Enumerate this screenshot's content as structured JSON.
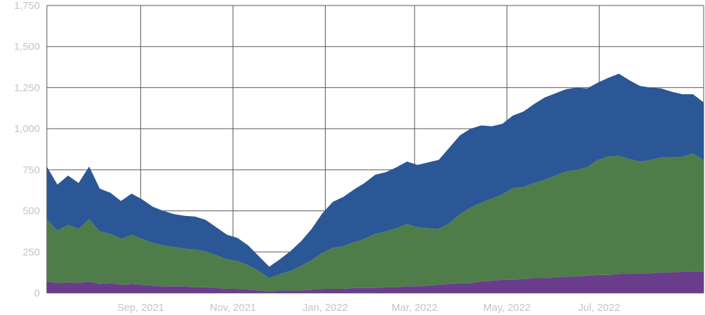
{
  "chart_data": {
    "type": "area",
    "stacked": true,
    "grid": true,
    "legend": "none",
    "ylim": [
      0,
      1750
    ],
    "yticks": [
      0,
      250,
      500,
      750,
      1000,
      1250,
      1500,
      1750
    ],
    "ytick_labels": [
      "0",
      "250",
      "500",
      "750",
      "1,000",
      "1,250",
      "1,500",
      "1,750"
    ],
    "x_range": [
      "2021-07-01",
      "2022-09-08"
    ],
    "xticks": [
      "2021-09-01",
      "2021-11-01",
      "2022-01-01",
      "2022-03-01",
      "2022-05-01",
      "2022-07-01"
    ],
    "xtick_labels": [
      "Sep, 2021",
      "Nov, 2021",
      "Jan, 2022",
      "Mar, 2022",
      "May, 2022",
      "Jul, 2022"
    ],
    "x_interval": "weekly",
    "x": [
      "2021-07-01",
      "2021-07-08",
      "2021-07-15",
      "2021-07-22",
      "2021-07-29",
      "2021-08-05",
      "2021-08-12",
      "2021-08-19",
      "2021-08-26",
      "2021-09-02",
      "2021-09-09",
      "2021-09-16",
      "2021-09-23",
      "2021-09-30",
      "2021-10-07",
      "2021-10-14",
      "2021-10-21",
      "2021-10-28",
      "2021-11-04",
      "2021-11-11",
      "2021-11-18",
      "2021-11-25",
      "2021-12-02",
      "2021-12-09",
      "2021-12-16",
      "2021-12-23",
      "2021-12-30",
      "2022-01-06",
      "2022-01-13",
      "2022-01-20",
      "2022-01-27",
      "2022-02-03",
      "2022-02-10",
      "2022-02-17",
      "2022-02-24",
      "2022-03-03",
      "2022-03-10",
      "2022-03-17",
      "2022-03-24",
      "2022-03-31",
      "2022-04-07",
      "2022-04-14",
      "2022-04-21",
      "2022-04-28",
      "2022-05-05",
      "2022-05-12",
      "2022-05-19",
      "2022-05-26",
      "2022-06-02",
      "2022-06-09",
      "2022-06-16",
      "2022-06-23",
      "2022-06-30",
      "2022-07-07",
      "2022-07-14",
      "2022-07-21",
      "2022-07-28",
      "2022-08-04",
      "2022-08-11",
      "2022-08-18",
      "2022-08-25",
      "2022-09-01",
      "2022-09-08"
    ],
    "series": [
      {
        "color": "#6a3d8c",
        "values": [
          70,
          60,
          65,
          60,
          70,
          55,
          60,
          50,
          55,
          50,
          45,
          40,
          40,
          40,
          35,
          35,
          30,
          25,
          25,
          20,
          15,
          10,
          15,
          15,
          15,
          20,
          25,
          25,
          25,
          30,
          30,
          30,
          35,
          35,
          40,
          40,
          45,
          50,
          55,
          60,
          60,
          70,
          75,
          80,
          80,
          85,
          90,
          90,
          95,
          100,
          100,
          105,
          110,
          110,
          115,
          115,
          120,
          120,
          125,
          125,
          130,
          130,
          130
        ]
      },
      {
        "color": "#4e7d4a",
        "values": [
          380,
          320,
          350,
          330,
          380,
          320,
          300,
          280,
          300,
          280,
          260,
          250,
          240,
          230,
          230,
          220,
          200,
          180,
          170,
          150,
          120,
          80,
          100,
          120,
          150,
          180,
          220,
          250,
          260,
          280,
          300,
          330,
          340,
          360,
          380,
          360,
          350,
          340,
          370,
          420,
          460,
          480,
          500,
          520,
          560,
          560,
          580,
          600,
          620,
          640,
          650,
          660,
          700,
          720,
          720,
          700,
          680,
          690,
          700,
          700,
          700,
          720,
          680
        ]
      },
      {
        "color": "#2b5797",
        "values": [
          320,
          280,
          300,
          280,
          320,
          260,
          250,
          230,
          250,
          240,
          220,
          210,
          200,
          200,
          200,
          190,
          170,
          150,
          140,
          120,
          90,
          70,
          90,
          120,
          150,
          190,
          240,
          280,
          300,
          320,
          340,
          360,
          360,
          370,
          380,
          380,
          400,
          420,
          460,
          480,
          480,
          470,
          440,
          430,
          440,
          460,
          480,
          500,
          500,
          500,
          500,
          480,
          470,
          480,
          500,
          480,
          460,
          440,
          420,
          400,
          380,
          360,
          350
        ]
      }
    ]
  }
}
